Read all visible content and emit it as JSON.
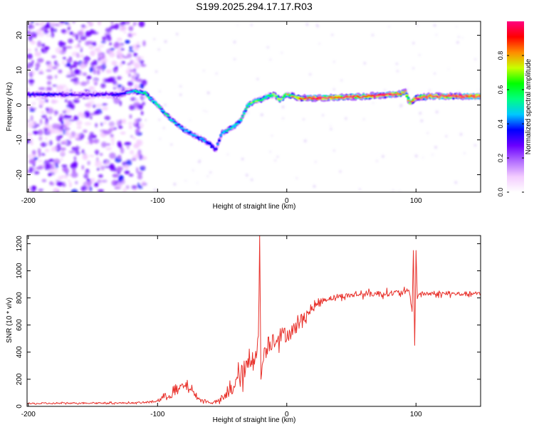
{
  "title": "S199.2025.294.17.17.R03",
  "colors": {
    "snr_line": "#e8322c",
    "axis": "#000000",
    "scatter": "#b58cf0",
    "colormap": [
      "#ffffff",
      "#f3ccff",
      "#b26cff",
      "#6a00ff",
      "#0000ff",
      "#00c8ff",
      "#00ff80",
      "#00ff00",
      "#c8ff00",
      "#ff8c00",
      "#ff0000",
      "#ff0080"
    ]
  },
  "chart_data": [
    {
      "type": "heatmap",
      "name": "spectrogram",
      "xlabel": "Height of straight line (km)",
      "ylabel": "Frequency (Hz)",
      "xlim": [
        -201,
        150
      ],
      "ylim": [
        -25,
        24
      ],
      "x_ticks": [
        "-200",
        "-100",
        "0",
        "100"
      ],
      "y_ticks": [
        "-20",
        "-10",
        "0",
        "10",
        "20"
      ],
      "colorbar": {
        "label": "Normalized spectral amplitude",
        "range": [
          0.0,
          1.0
        ],
        "ticks": [
          "0.0",
          "0.2",
          "0.4",
          "0.6",
          "0.8"
        ]
      },
      "ridge": {
        "x": [
          -201,
          -190,
          -180,
          -170,
          -160,
          -150,
          -140,
          -130,
          -120,
          -110,
          -100,
          -90,
          -80,
          -70,
          -60,
          -55,
          -50,
          -45,
          -40,
          -35,
          -30,
          -25,
          -20,
          -15,
          -10,
          -5,
          0,
          10,
          20,
          40,
          60,
          80,
          88,
          92,
          95,
          100,
          110,
          130,
          150
        ],
        "y": [
          3,
          3,
          3,
          3,
          3,
          3,
          3,
          3,
          4,
          3.5,
          0,
          -4,
          -7,
          -9,
          -11,
          -13,
          -8,
          -7,
          -6,
          -4,
          0,
          1,
          1.5,
          2.5,
          3,
          1.5,
          3,
          2,
          2,
          2.2,
          2.5,
          3,
          3.2,
          4,
          0.5,
          2,
          2.5,
          2.5,
          2.5
        ],
        "peak_amplitude": [
          0.3,
          0.35,
          0.35,
          0.3,
          0.3,
          0.3,
          0.3,
          0.35,
          0.45,
          0.55,
          0.55,
          0.5,
          0.45,
          0.45,
          0.45,
          0.35,
          0.5,
          0.5,
          0.5,
          0.55,
          0.6,
          0.6,
          0.6,
          0.6,
          0.65,
          0.65,
          0.7,
          0.85,
          1.0,
          0.95,
          0.9,
          1.0,
          0.85,
          0.7,
          0.75,
          0.9,
          0.95,
          1.0,
          1.0
        ]
      },
      "noise_region_x": [
        -201,
        -110
      ]
    },
    {
      "type": "line",
      "name": "snr",
      "xlabel": "Height of straight line (km)",
      "ylabel": "SNR (10 * v/v)",
      "xlim": [
        -201,
        150
      ],
      "ylim": [
        0,
        1260
      ],
      "x_ticks": [
        "-200",
        "-100",
        "0",
        "100"
      ],
      "y_ticks": [
        "0",
        "200",
        "400",
        "600",
        "800",
        "1000",
        "1200"
      ],
      "series": [
        {
          "name": "SNR",
          "x": [
            -201,
            -180,
            -160,
            -140,
            -120,
            -110,
            -100,
            -95,
            -90,
            -85,
            -80,
            -75,
            -70,
            -65,
            -60,
            -55,
            -50,
            -45,
            -40,
            -35,
            -30,
            -25,
            -22,
            -21,
            -20,
            -18,
            -15,
            -10,
            -5,
            0,
            5,
            10,
            15,
            20,
            25,
            30,
            40,
            50,
            60,
            70,
            80,
            90,
            95,
            97,
            98,
            99,
            100,
            101,
            102,
            105,
            110,
            120,
            130,
            140,
            150
          ],
          "y": [
            20,
            22,
            25,
            25,
            25,
            28,
            40,
            70,
            90,
            110,
            150,
            140,
            70,
            40,
            30,
            30,
            50,
            100,
            170,
            230,
            300,
            380,
            450,
            1260,
            200,
            380,
            450,
            500,
            520,
            530,
            560,
            620,
            680,
            720,
            770,
            790,
            810,
            820,
            830,
            830,
            835,
            840,
            850,
            700,
            1150,
            450,
            1150,
            800,
            830,
            830,
            830,
            830,
            830,
            830,
            830
          ],
          "noise_amplitude": [
            10,
            10,
            10,
            10,
            10,
            10,
            20,
            40,
            60,
            80,
            60,
            50,
            30,
            20,
            20,
            20,
            40,
            80,
            130,
            150,
            140,
            130,
            120,
            0,
            0,
            130,
            130,
            130,
            120,
            100,
            100,
            90,
            70,
            50,
            40,
            35,
            35,
            35,
            40,
            40,
            40,
            40,
            40,
            0,
            0,
            0,
            0,
            30,
            30,
            30,
            30,
            30,
            30,
            30,
            30
          ]
        }
      ]
    }
  ]
}
